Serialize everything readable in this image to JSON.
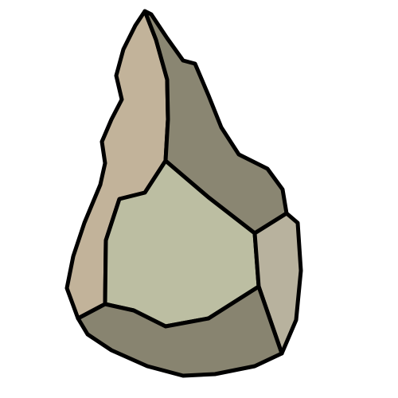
{
  "illustration": {
    "subject": "stone-hand-axe-icon",
    "background_color": "#ffffff",
    "outline_color": "#000000",
    "facet_colors": {
      "left_tan": "#c2b39a",
      "upper_right_dark": "#8a8672",
      "center_face": "#bcbea2",
      "right_edge": "#b8b29e",
      "bottom_dark": "#888470"
    }
  }
}
